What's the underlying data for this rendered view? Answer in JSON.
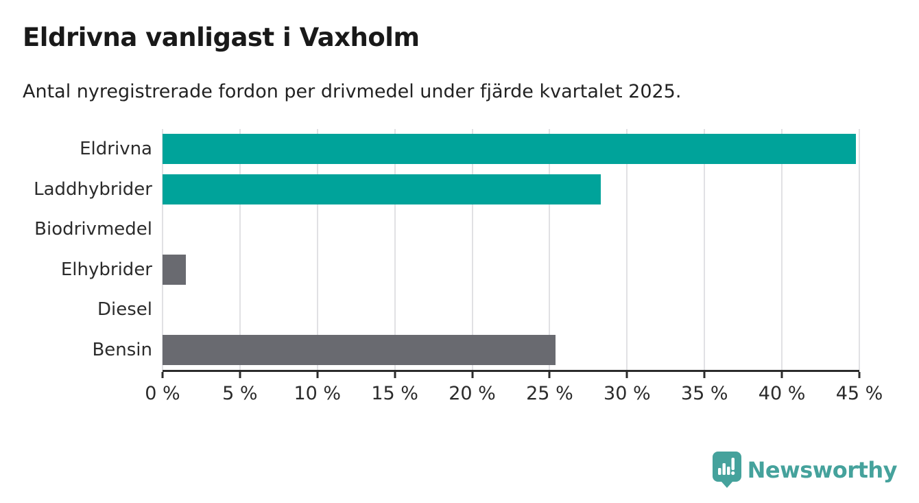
{
  "header": {
    "title": "Eldrivna vanligast i Vaxholm",
    "subtitle": "Antal nyregistrerade fordon per drivmedel under fjärde kvartalet 2025."
  },
  "chart_data": {
    "type": "bar",
    "orientation": "horizontal",
    "title": "Eldrivna vanligast i Vaxholm",
    "subtitle": "Antal nyregistrerade fordon per drivmedel under fjärde kvartalet 2025.",
    "categories": [
      "Eldrivna",
      "Laddhybrider",
      "Biodrivmedel",
      "Elhybrider",
      "Diesel",
      "Bensin"
    ],
    "values": [
      44.8,
      28.3,
      0,
      1.5,
      0,
      25.4
    ],
    "unit": "%",
    "bar_colors": [
      "#00a39a",
      "#00a39a",
      "#696a70",
      "#696a70",
      "#696a70",
      "#696a70"
    ],
    "xlim": [
      0,
      45
    ],
    "x_ticks": [
      0,
      5,
      10,
      15,
      20,
      25,
      30,
      35,
      40,
      45
    ],
    "x_tick_labels": [
      "0 %",
      "5 %",
      "10 %",
      "15 %",
      "20 %",
      "25 %",
      "30 %",
      "35 %",
      "40 %",
      "45 %"
    ],
    "xlabel": "",
    "ylabel": "",
    "grid": true,
    "legend": false
  },
  "colors": {
    "teal": "#00a39a",
    "gray": "#696a70",
    "gridline": "#e1e1e4",
    "axis": "#2b2b2b",
    "logo_teal": "#45a29c"
  },
  "footer": {
    "brand": "Newsworthy"
  }
}
